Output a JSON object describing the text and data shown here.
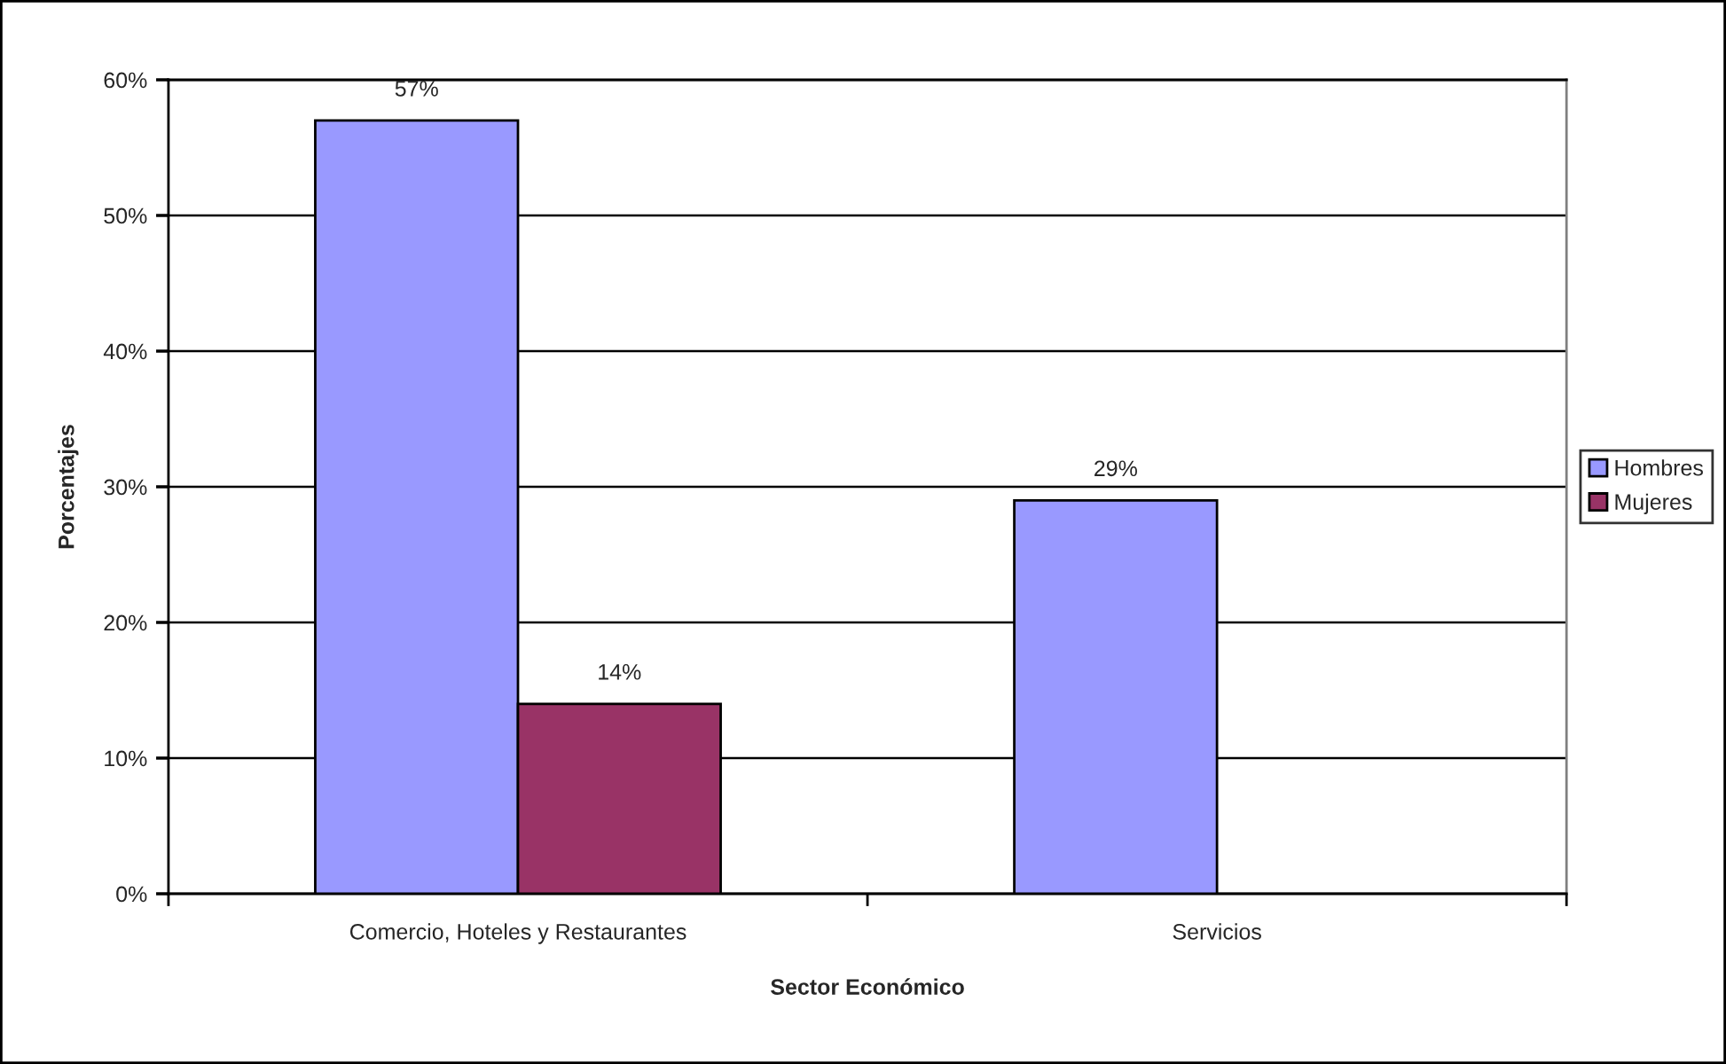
{
  "chart_data": {
    "type": "bar",
    "xlabel": "Sector Económico",
    "ylabel": "Porcentajes",
    "categories": [
      "Comercio, Hoteles y Restaurantes",
      "Servicios"
    ],
    "series": [
      {
        "name": "Hombres",
        "color": "#9999ff",
        "values": [
          57,
          29
        ],
        "value_labels": [
          "57%",
          "29%"
        ]
      },
      {
        "name": "Mujeres",
        "color": "#993366",
        "values": [
          14,
          null
        ],
        "value_labels": [
          "14%",
          null
        ]
      }
    ],
    "ylim": [
      0,
      60
    ],
    "yticks": [
      {
        "value": 0,
        "label": "0%"
      },
      {
        "value": 10,
        "label": "10%"
      },
      {
        "value": 20,
        "label": "20%"
      },
      {
        "value": 30,
        "label": "30%"
      },
      {
        "value": 40,
        "label": "40%"
      },
      {
        "value": 50,
        "label": "50%"
      },
      {
        "value": 60,
        "label": "60%"
      }
    ],
    "grid": "y",
    "legend": "right"
  }
}
